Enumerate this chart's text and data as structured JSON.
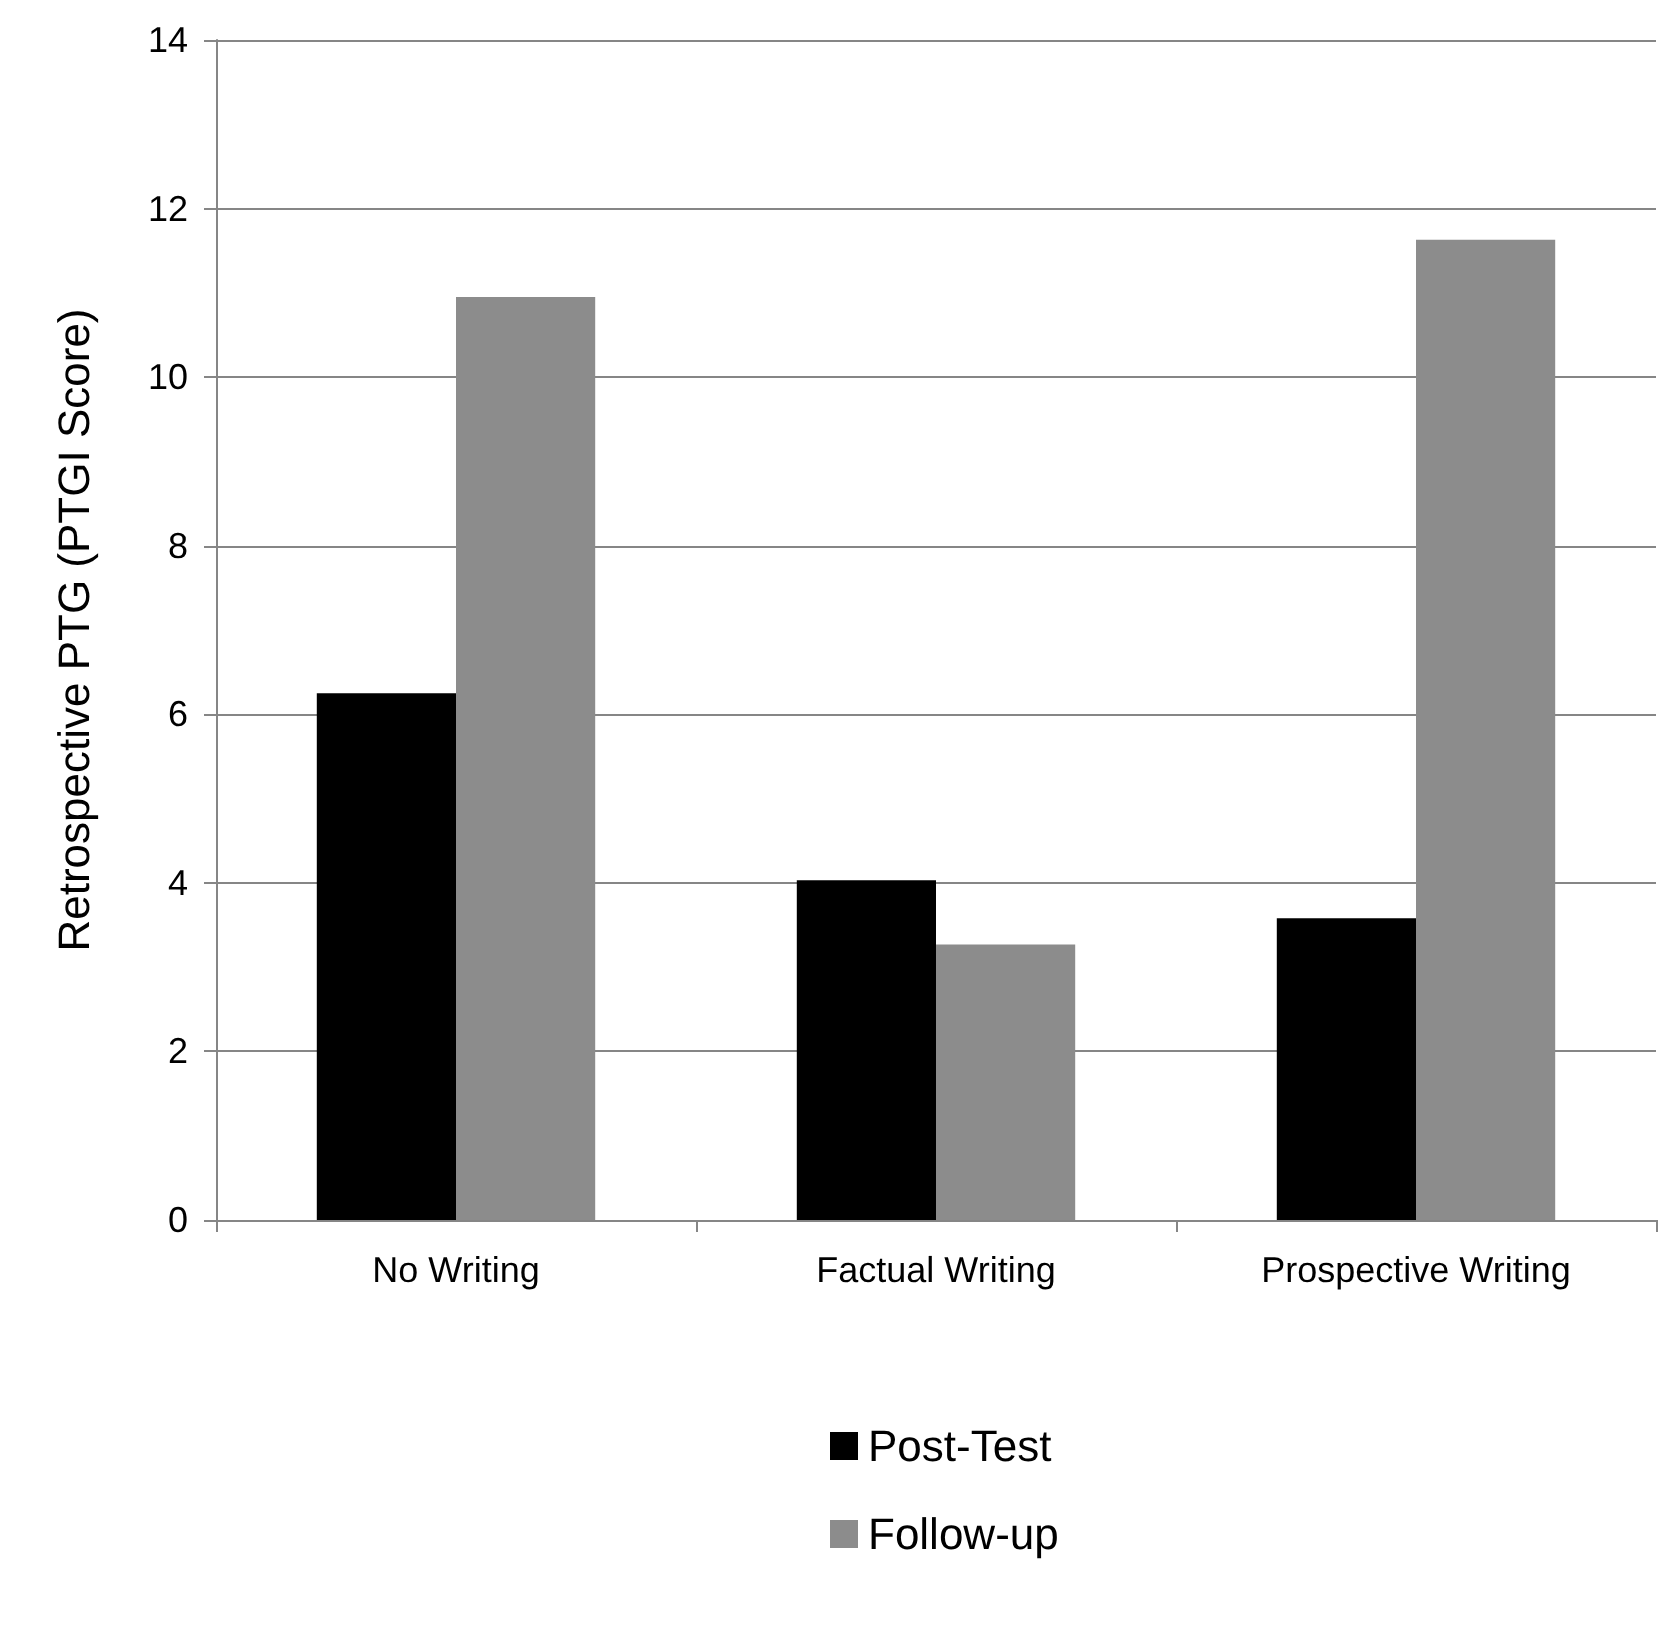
{
  "chart_data": {
    "type": "bar",
    "ylabel": "Retrospective PTG (PTGI Score)",
    "categories": [
      "No Writing",
      "Factual Writing",
      "Prospective Writing"
    ],
    "series": [
      {
        "name": "Post-Test",
        "color": "#000000",
        "values": [
          6.25,
          4.03,
          3.58
        ]
      },
      {
        "name": "Follow-up",
        "color": "#8c8c8c",
        "values": [
          10.95,
          3.27,
          11.63
        ]
      }
    ],
    "ylim": [
      0,
      14
    ],
    "yticks": [
      0,
      2,
      4,
      6,
      8,
      10,
      12,
      14
    ],
    "grid": "y",
    "legend": "bottom"
  }
}
